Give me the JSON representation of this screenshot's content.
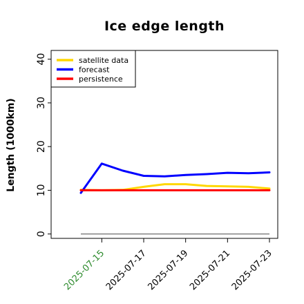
{
  "chart_data": {
    "type": "line",
    "title": "Ice edge length",
    "xlabel": "",
    "ylabel": "Length (1000km)",
    "x": [
      "2025-07-14",
      "2025-07-15",
      "2025-07-16",
      "2025-07-17",
      "2025-07-18",
      "2025-07-19",
      "2025-07-20",
      "2025-07-21",
      "2025-07-22",
      "2025-07-23"
    ],
    "x_tick_labels": [
      "2025-07-15",
      "2025-07-17",
      "2025-07-19",
      "2025-07-21",
      "2025-07-23"
    ],
    "x_tick_colors": [
      "#2e8b2e",
      "#000000",
      "#000000",
      "#000000",
      "#000000"
    ],
    "y_ticks": [
      0,
      10,
      20,
      30,
      40
    ],
    "ylim": [
      -1,
      42
    ],
    "series": [
      {
        "name": "satellite data",
        "color": "#ffd700",
        "values": [
          10.1,
          10.0,
          10.1,
          10.8,
          11.4,
          11.4,
          11.0,
          10.9,
          10.8,
          10.4
        ]
      },
      {
        "name": "forecast",
        "color": "#0000ff",
        "values": [
          9.4,
          16.1,
          14.5,
          13.3,
          13.2,
          13.5,
          13.7,
          14.0,
          13.9,
          14.1
        ]
      },
      {
        "name": "persistence",
        "color": "#ff0000",
        "values": [
          10.0,
          10.0,
          10.0,
          10.0,
          10.0,
          10.0,
          10.0,
          10.0,
          10.0,
          10.0
        ]
      }
    ],
    "baseline": {
      "value": 0,
      "color": "#808080"
    },
    "legend_position": "top-left",
    "grid": false
  }
}
